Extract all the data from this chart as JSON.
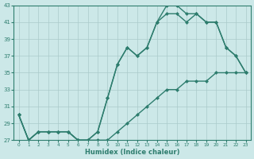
{
  "xlabel": "Humidex (Indice chaleur)",
  "x": [
    0,
    1,
    2,
    3,
    4,
    5,
    6,
    7,
    8,
    9,
    10,
    11,
    12,
    13,
    14,
    15,
    16,
    17,
    18,
    19,
    20,
    21,
    22,
    23
  ],
  "line_min": [
    30,
    27,
    28,
    28,
    28,
    28,
    27,
    27,
    27,
    27,
    28,
    29,
    30,
    31,
    32,
    33,
    33,
    34,
    34,
    34,
    35,
    35,
    35,
    35
  ],
  "line_mid": [
    30,
    27,
    28,
    28,
    28,
    28,
    27,
    27,
    28,
    32,
    36,
    38,
    37,
    38,
    41,
    42,
    42,
    41,
    42,
    41,
    41,
    38,
    37,
    35
  ],
  "line_max": [
    30,
    27,
    28,
    28,
    28,
    28,
    27,
    27,
    28,
    32,
    36,
    38,
    37,
    38,
    41,
    43,
    43,
    42,
    42,
    41,
    41,
    38,
    37,
    35
  ],
  "ylim_min": 27,
  "ylim_max": 43,
  "xlim_min": 0,
  "xlim_max": 23,
  "yticks": [
    27,
    29,
    31,
    33,
    35,
    37,
    39,
    41,
    43
  ],
  "xticks": [
    0,
    1,
    2,
    3,
    4,
    5,
    6,
    7,
    8,
    9,
    10,
    11,
    12,
    13,
    14,
    15,
    16,
    17,
    18,
    19,
    20,
    21,
    22,
    23
  ],
  "line_color": "#2e7d6e",
  "bg_color": "#cce8e8",
  "grid_color": "#aacaca",
  "plot_bg": "#cce8e8",
  "tick_label_color": "#2e7d6e",
  "xlabel_fontsize": 6,
  "tick_fontsize": 5,
  "linewidth": 1.0,
  "markersize": 2.5
}
